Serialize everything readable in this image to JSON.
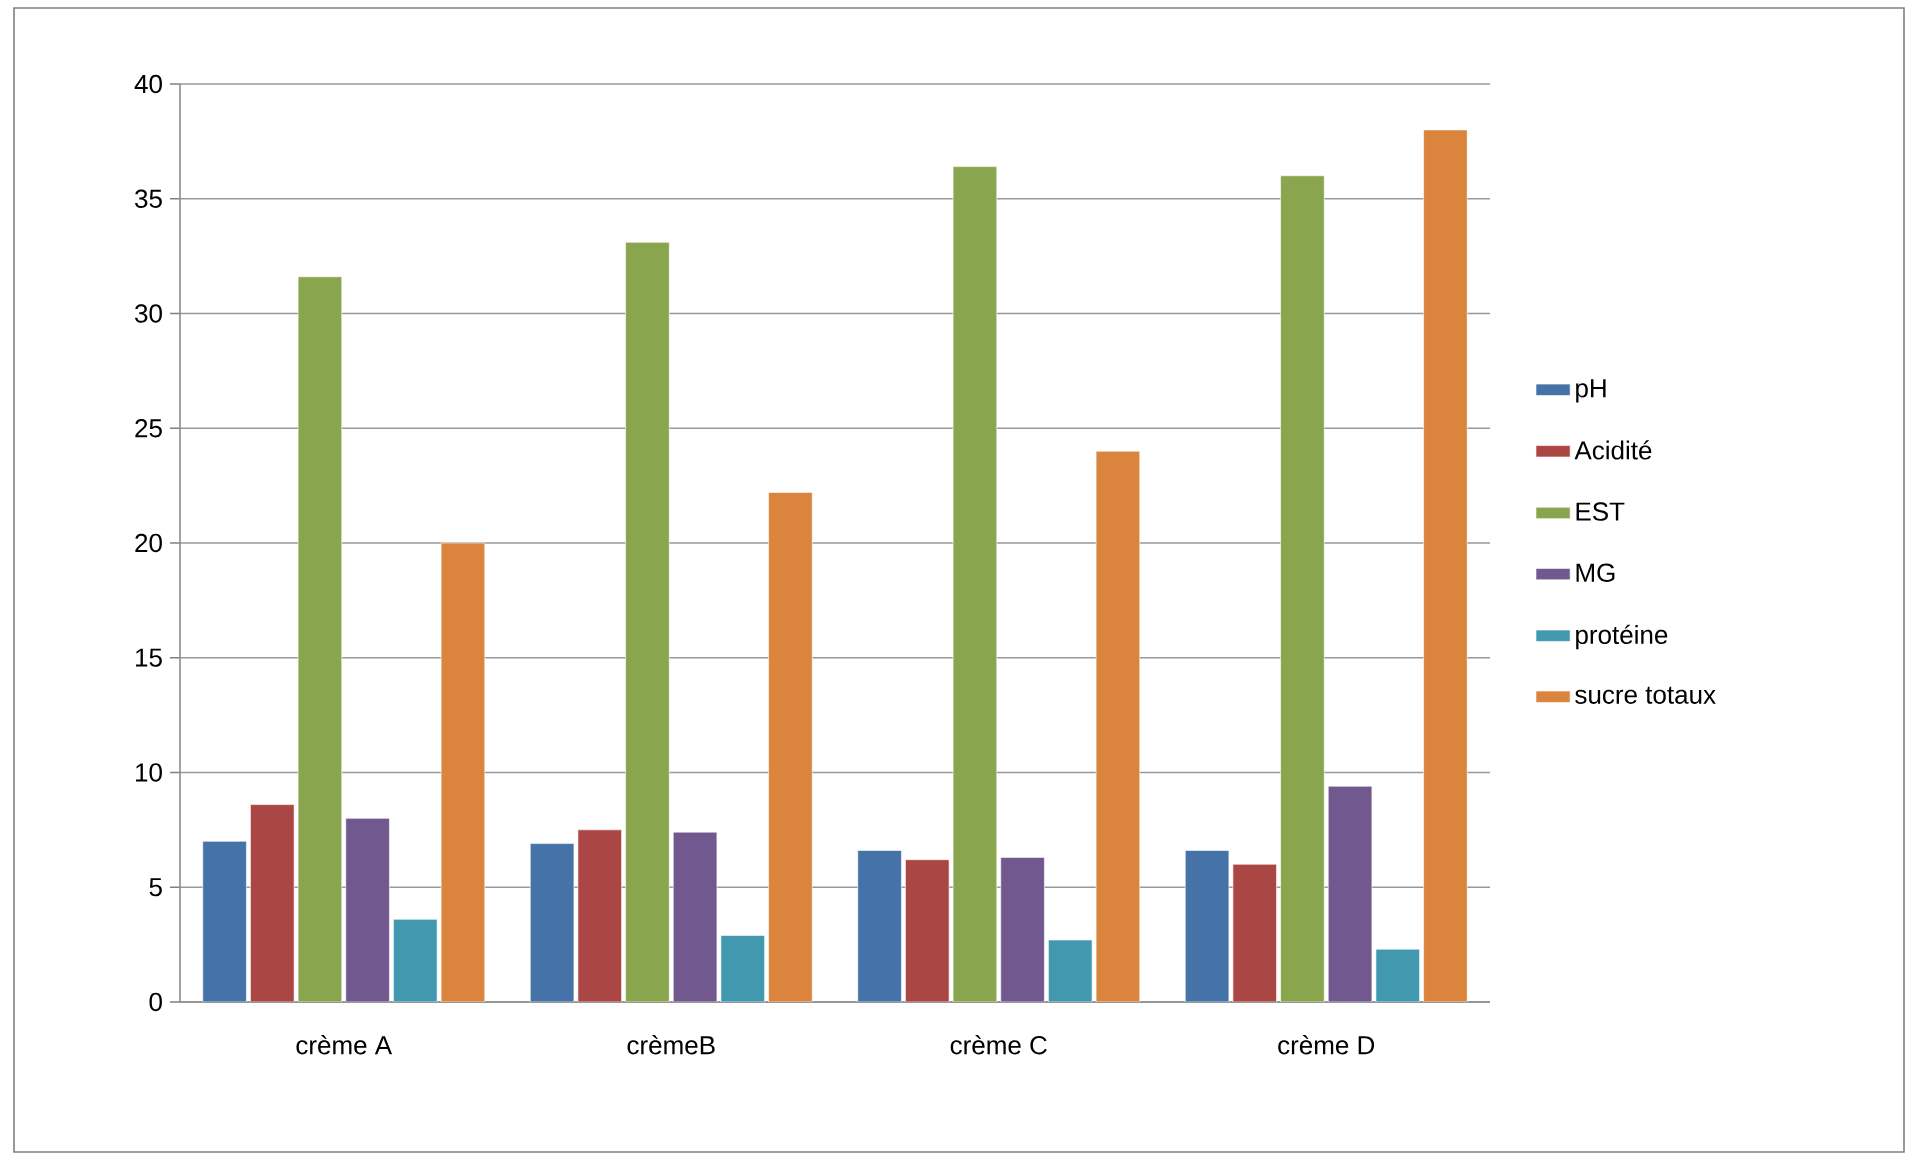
{
  "chart_data": {
    "type": "bar",
    "categories": [
      "crème A",
      "crèmeB",
      "crème C",
      "crème D"
    ],
    "series": [
      {
        "name": "pH",
        "color": "#4572a7",
        "values": [
          7.0,
          6.9,
          6.6,
          6.6
        ]
      },
      {
        "name": "Acidité",
        "color": "#aa4643",
        "values": [
          8.6,
          7.5,
          6.2,
          6.0
        ]
      },
      {
        "name": "EST",
        "color": "#89a54e",
        "values": [
          31.6,
          33.1,
          36.4,
          36.0
        ]
      },
      {
        "name": "MG",
        "color": "#71588f",
        "values": [
          8.0,
          7.4,
          6.3,
          9.4
        ]
      },
      {
        "name": "protéine",
        "color": "#4198af",
        "values": [
          3.6,
          2.9,
          2.7,
          2.3
        ]
      },
      {
        "name": "sucre totaux",
        "color": "#db843d",
        "values": [
          20.0,
          22.2,
          24.0,
          38.0
        ]
      }
    ],
    "ylim": [
      0,
      40
    ],
    "yticks": [
      0,
      5,
      10,
      15,
      20,
      25,
      30,
      35,
      40
    ],
    "grid": "y",
    "legend": "right"
  }
}
